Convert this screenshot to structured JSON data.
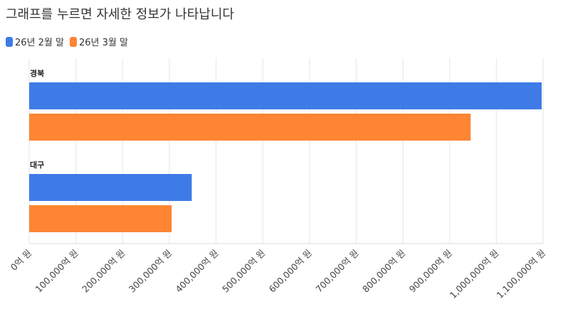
{
  "title": "그래프를 누르면 자세한 정보가 나타납니다",
  "colors": {
    "feb": "#3e7be6",
    "mar": "#fd8533"
  },
  "chart_data": {
    "type": "bar",
    "orientation": "horizontal",
    "title": "그래프를 누르면 자세한 정보가 나타납니다",
    "categories": [
      "경북",
      "대구"
    ],
    "series": [
      {
        "name": "26년 2월 말",
        "color": "#3e7be6",
        "values": [
          1097000,
          348000
        ]
      },
      {
        "name": "26년 3월 말",
        "color": "#fd8533",
        "values": [
          945000,
          305000
        ]
      }
    ],
    "xlim": [
      0,
      1100000
    ],
    "ticks": [
      0,
      100000,
      200000,
      300000,
      400000,
      500000,
      600000,
      700000,
      800000,
      900000,
      1000000,
      1100000
    ],
    "tick_labels": [
      "0억 원",
      "100,000억 원",
      "200,000억 원",
      "300,000억 원",
      "400,000억 원",
      "500,000억 원",
      "600,000억 원",
      "700,000억 원",
      "800,000억 원",
      "900,000억 원",
      "1,000,000억 원",
      "1,100,000억 원"
    ],
    "legend_position": "top-left",
    "grid": true
  }
}
